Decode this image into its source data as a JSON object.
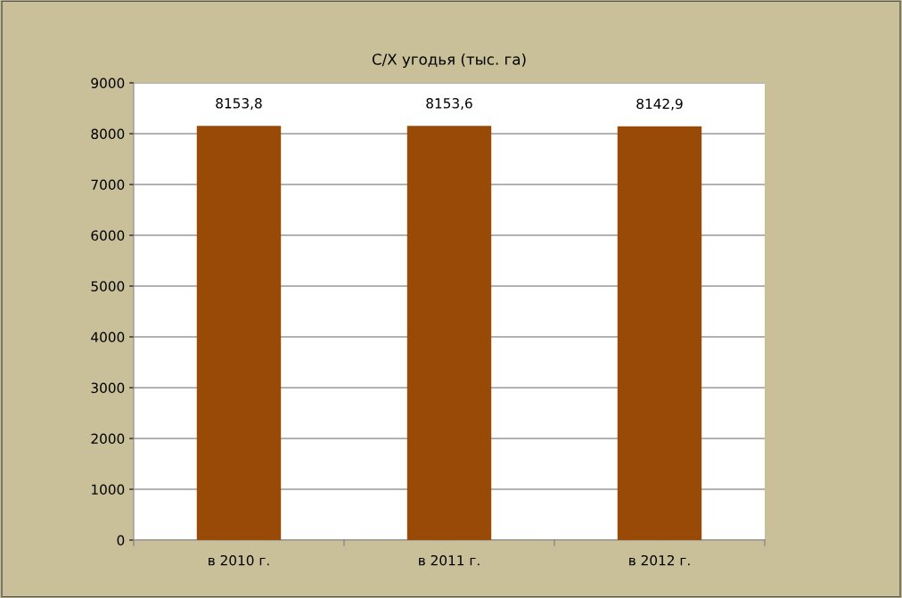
{
  "chart_data": {
    "type": "bar",
    "title": "С/Х угодья (тыс. га)",
    "categories": [
      "в 2010 г.",
      "в 2011 г.",
      "в 2012 г."
    ],
    "values": [
      8153.8,
      8153.6,
      8142.9
    ],
    "value_labels": [
      "8153,8",
      "8153,6",
      "8142,9"
    ],
    "color": "#994a06",
    "ylim": [
      0,
      9000
    ],
    "yticks": [
      0,
      1000,
      2000,
      3000,
      4000,
      5000,
      6000,
      7000,
      8000,
      9000
    ],
    "grid": "y",
    "legend": false
  }
}
